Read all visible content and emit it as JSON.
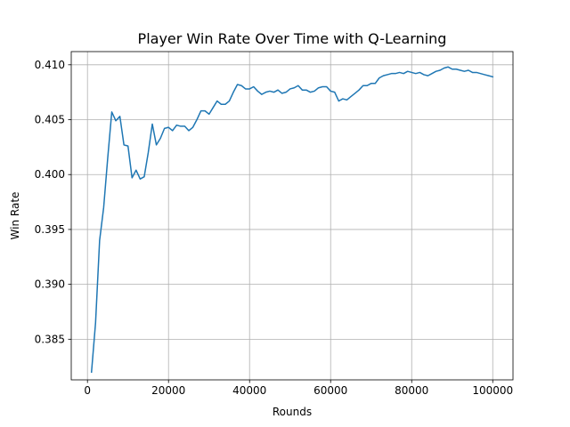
{
  "chart_data": {
    "type": "line",
    "title": "Player Win Rate Over Time with Q-Learning",
    "xlabel": "Rounds",
    "ylabel": "Win Rate",
    "xlim": [
      -4000,
      105000
    ],
    "ylim": [
      0.3813,
      0.4112
    ],
    "xticks": [
      0,
      20000,
      40000,
      60000,
      80000,
      100000
    ],
    "xtick_labels": [
      "0",
      "20000",
      "40000",
      "60000",
      "80000",
      "100000"
    ],
    "yticks": [
      0.385,
      0.39,
      0.395,
      0.4,
      0.405,
      0.41
    ],
    "ytick_labels": [
      "0.385",
      "0.390",
      "0.395",
      "0.400",
      "0.405",
      "0.410"
    ],
    "grid": true,
    "legend": false,
    "color": "#1f77b4",
    "series": [
      {
        "x": [
          1000,
          2000,
          3000,
          4000,
          5000,
          6000,
          7000,
          8000,
          9000,
          10000,
          11000,
          12000,
          13000,
          14000,
          15000,
          16000,
          17000,
          18000,
          19000,
          20000,
          21000,
          22000,
          23000,
          24000,
          25000,
          26000,
          27000,
          28000,
          29000,
          30000,
          31000,
          32000,
          33000,
          34000,
          35000,
          36000,
          37000,
          38000,
          39000,
          40000,
          41000,
          42000,
          43000,
          44000,
          45000,
          46000,
          47000,
          48000,
          49000,
          50000,
          51000,
          52000,
          53000,
          54000,
          55000,
          56000,
          57000,
          58000,
          59000,
          60000,
          61000,
          62000,
          63000,
          64000,
          65000,
          66000,
          67000,
          68000,
          69000,
          70000,
          71000,
          72000,
          73000,
          74000,
          75000,
          76000,
          77000,
          78000,
          79000,
          80000,
          81000,
          82000,
          83000,
          84000,
          85000,
          86000,
          87000,
          88000,
          89000,
          90000,
          91000,
          92000,
          93000,
          94000,
          95000,
          96000,
          97000,
          98000,
          99000,
          100000
        ],
        "values": [
          0.382,
          0.3865,
          0.394,
          0.397,
          0.4015,
          0.4057,
          0.4049,
          0.4053,
          0.4027,
          0.4026,
          0.3997,
          0.4004,
          0.3996,
          0.3998,
          0.402,
          0.4046,
          0.4027,
          0.4033,
          0.4042,
          0.4043,
          0.404,
          0.4045,
          0.4044,
          0.4044,
          0.404,
          0.4043,
          0.405,
          0.4058,
          0.4058,
          0.4055,
          0.4061,
          0.4067,
          0.4064,
          0.4064,
          0.4067,
          0.4075,
          0.4082,
          0.4081,
          0.4078,
          0.4078,
          0.408,
          0.4076,
          0.4073,
          0.4075,
          0.4076,
          0.4075,
          0.4077,
          0.4074,
          0.4075,
          0.4078,
          0.4079,
          0.4081,
          0.4077,
          0.4077,
          0.4075,
          0.4076,
          0.4079,
          0.408,
          0.408,
          0.4076,
          0.4075,
          0.4067,
          0.4069,
          0.4068,
          0.4071,
          0.4074,
          0.4077,
          0.4081,
          0.4081,
          0.4083,
          0.4083,
          0.4088,
          0.409,
          0.4091,
          0.4092,
          0.4092,
          0.4093,
          0.4092,
          0.4094,
          0.4093,
          0.4092,
          0.4093,
          0.4091,
          0.409,
          0.4092,
          0.4094,
          0.4095,
          0.4097,
          0.4098,
          0.4096,
          0.4096,
          0.4095,
          0.4094,
          0.4095,
          0.4093,
          0.4093,
          0.4092,
          0.4091,
          0.409,
          0.4089
        ]
      }
    ]
  }
}
